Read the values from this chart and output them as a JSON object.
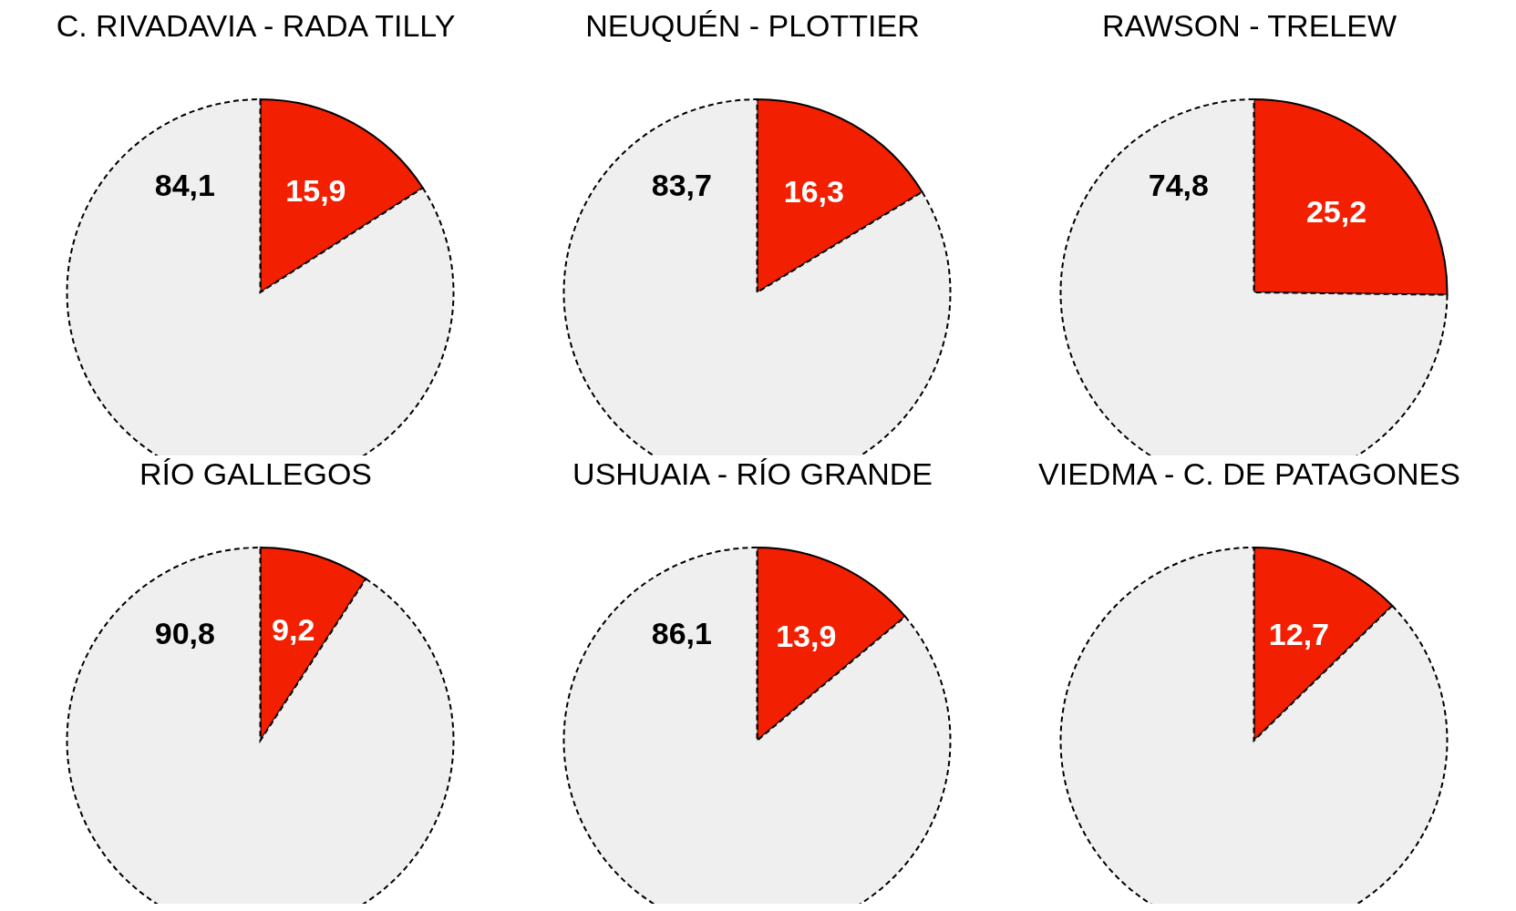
{
  "chart_data": [
    {
      "type": "pie",
      "title": "C. RIVADAVIA - RADA TILLY",
      "categories": [
        null,
        null
      ],
      "values": [
        15.9,
        84.1
      ],
      "colors": [
        "#f21f00",
        "#efefef"
      ],
      "value_labels": [
        "15,9",
        "84,1"
      ]
    },
    {
      "type": "pie",
      "title": "NEUQUÉN - PLOTTIER",
      "categories": [
        null,
        null
      ],
      "values": [
        16.3,
        83.7
      ],
      "colors": [
        "#f21f00",
        "#efefef"
      ],
      "value_labels": [
        "16,3",
        "83,7"
      ]
    },
    {
      "type": "pie",
      "title": "RAWSON - TRELEW",
      "categories": [
        null,
        null
      ],
      "values": [
        25.2,
        74.8
      ],
      "colors": [
        "#f21f00",
        "#efefef"
      ],
      "value_labels": [
        "25,2",
        "74,8"
      ]
    },
    {
      "type": "pie",
      "title": "RÍO GALLEGOS",
      "categories": [
        null,
        null
      ],
      "values": [
        9.2,
        90.8
      ],
      "colors": [
        "#f21f00",
        "#efefef"
      ],
      "value_labels": [
        "9,2",
        "90,8"
      ]
    },
    {
      "type": "pie",
      "title": "USHUAIA - RÍO GRANDE",
      "categories": [
        null,
        null
      ],
      "values": [
        13.9,
        86.1
      ],
      "colors": [
        "#f21f00",
        "#efefef"
      ],
      "value_labels": [
        "13,9",
        "86,1"
      ]
    },
    {
      "type": "pie",
      "title": "VIEDMA - C. DE PATAGONES",
      "categories": [
        null,
        null
      ],
      "values": [
        12.7,
        87.3
      ],
      "colors": [
        "#f21f00",
        "#efefef"
      ],
      "value_labels": [
        "12,7",
        null
      ]
    }
  ]
}
